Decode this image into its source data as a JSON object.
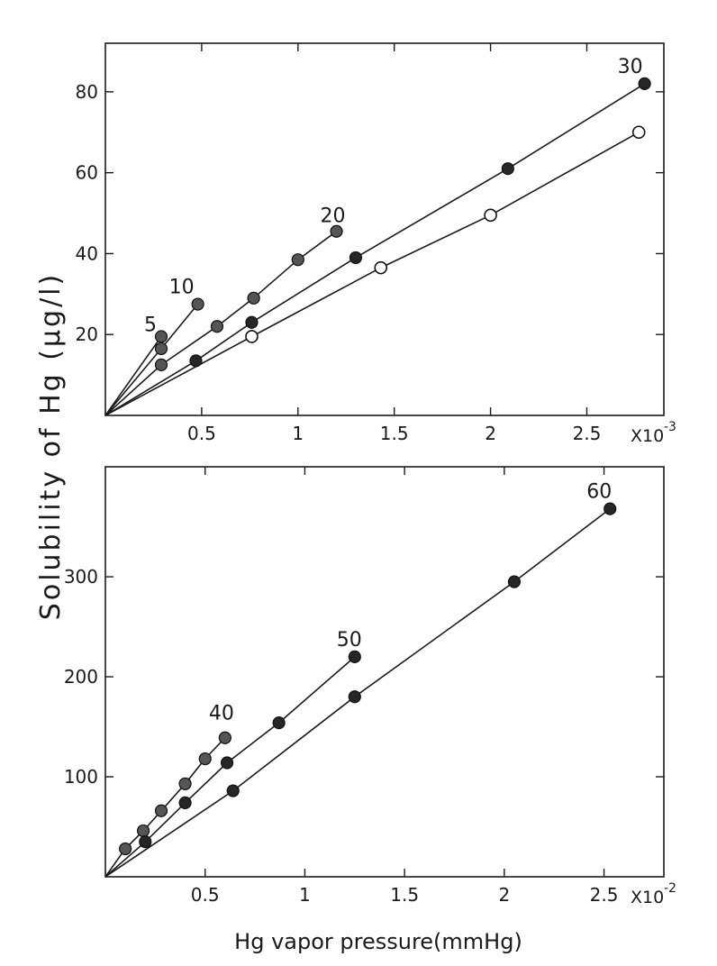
{
  "chart_data": [
    {
      "type": "scatter",
      "panel": "top",
      "title": "",
      "xlabel": "",
      "ylabel": "Solubility of Hg (µg/l)",
      "x_multiplier": "X10",
      "x_exponent": "-3",
      "x_ticks": [
        0.5,
        1,
        1.5,
        2,
        2.5
      ],
      "x_tick_labels": [
        "0.5",
        "1",
        "1.5",
        "2",
        "2.5"
      ],
      "y_ticks": [
        20,
        40,
        60,
        80
      ],
      "y_tick_labels": [
        "20",
        "40",
        "60",
        "80"
      ],
      "xlim": [
        0,
        2.9
      ],
      "ylim": [
        0,
        92
      ],
      "grid": false,
      "series": [
        {
          "name": "5",
          "marker": "half",
          "label_value": "5",
          "x": [
            0,
            0.29
          ],
          "y": [
            0,
            19.5
          ]
        },
        {
          "name": "10",
          "marker": "half",
          "label_value": "10",
          "x": [
            0,
            0.29,
            0.48
          ],
          "y": [
            0,
            16.5,
            27.5
          ]
        },
        {
          "name": "20",
          "marker": "half",
          "label_value": "20",
          "x": [
            0,
            0.29,
            0.58,
            0.77,
            1.0,
            1.2
          ],
          "y": [
            0,
            12.5,
            22,
            29,
            38.5,
            45.5
          ]
        },
        {
          "name": "30",
          "marker": "filled",
          "label_value": "30",
          "x": [
            0,
            0.47,
            0.76,
            1.3,
            2.09,
            2.8
          ],
          "y": [
            0,
            13.5,
            23,
            39,
            61,
            82
          ]
        },
        {
          "name": "",
          "marker": "open",
          "label_value": "",
          "x": [
            0,
            0.76,
            1.43,
            2.0,
            2.77
          ],
          "y": [
            0,
            19.5,
            36.5,
            49.5,
            70
          ]
        }
      ]
    },
    {
      "type": "scatter",
      "panel": "bottom",
      "title": "",
      "xlabel": "Hg vapor pressure(mmHg)",
      "ylabel": "Solubility of Hg (µg/l)",
      "x_multiplier": "X10",
      "x_exponent": "-2",
      "x_ticks": [
        0.5,
        1,
        1.5,
        2,
        2.5
      ],
      "x_tick_labels": [
        "0.5",
        "1",
        "1.5",
        "2",
        "2.5"
      ],
      "y_ticks": [
        100,
        200,
        300
      ],
      "y_tick_labels": [
        "100",
        "200",
        "300"
      ],
      "xlim": [
        0,
        2.8
      ],
      "ylim": [
        0,
        410
      ],
      "grid": false,
      "series": [
        {
          "name": "40",
          "marker": "half",
          "label_value": "40",
          "x": [
            0,
            0.1,
            0.19,
            0.28,
            0.4,
            0.5,
            0.6
          ],
          "y": [
            0,
            28,
            46,
            66,
            93,
            118,
            139
          ]
        },
        {
          "name": "50",
          "marker": "filled",
          "label_value": "50",
          "x": [
            0,
            0.2,
            0.4,
            0.61,
            0.87,
            1.25
          ],
          "y": [
            0,
            35,
            74,
            114,
            154,
            220
          ]
        },
        {
          "name": "60",
          "marker": "filled",
          "label_value": "60",
          "x": [
            0,
            0.64,
            1.25,
            2.05,
            2.53
          ],
          "y": [
            0,
            86,
            180,
            295,
            368
          ]
        }
      ]
    }
  ]
}
